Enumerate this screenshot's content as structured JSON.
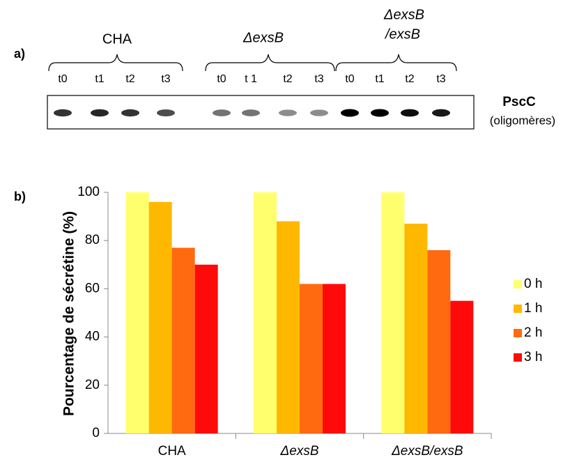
{
  "panel_labels": [
    "a)",
    "b)"
  ],
  "gel": {
    "groups": [
      "CHA",
      "ΔexsB",
      "ΔexsB",
      "/exsB"
    ],
    "lanes": [
      "t0",
      "t1",
      "t2",
      "t3",
      "t0",
      "t 1",
      "t2",
      "t3",
      "t0",
      "t1",
      "t2",
      "t3"
    ],
    "protein": "PscC",
    "note": "(oligomères)"
  },
  "chart_data": {
    "type": "bar",
    "categories": [
      "CHA",
      "ΔexsB",
      "ΔexsB/exsB"
    ],
    "y_label": "Pourcentage de sécrétine (%)",
    "ylim": [
      0,
      100
    ],
    "yticks": [
      0,
      20,
      40,
      60,
      80,
      100
    ],
    "legend": "right",
    "series": [
      {
        "name": "0 h",
        "color": "#ffff6e",
        "values": [
          100,
          100,
          100
        ]
      },
      {
        "name": "1 h",
        "color": "#ffb800",
        "values": [
          96,
          88,
          87
        ]
      },
      {
        "name": "2 h",
        "color": "#ff6a10",
        "values": [
          77,
          62,
          76
        ]
      },
      {
        "name": "3 h",
        "color": "#ff0a0a",
        "values": [
          70,
          62,
          55
        ]
      }
    ]
  }
}
